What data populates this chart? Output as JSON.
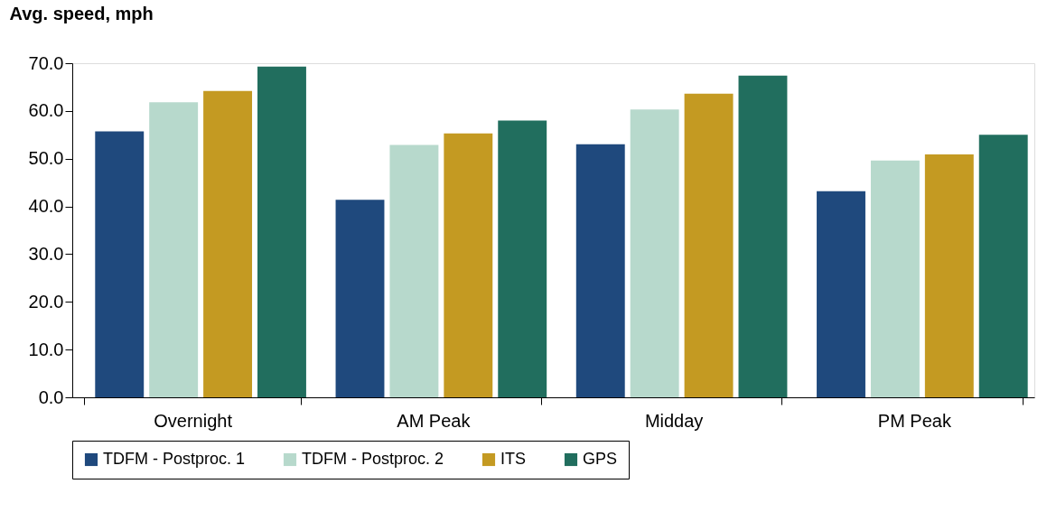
{
  "chart_data": {
    "type": "bar",
    "ylabel": "Avg. speed, mph",
    "categories": [
      "Overnight",
      "AM Peak",
      "Midday",
      "PM Peak"
    ],
    "series": [
      {
        "name": "TDFM - Postproc. 1",
        "color": "#1f497d",
        "values": [
          55.7,
          41.4,
          53.0,
          43.2
        ]
      },
      {
        "name": "TDFM - Postproc. 2",
        "color": "#b7d9cc",
        "values": [
          61.8,
          52.9,
          60.3,
          49.6
        ]
      },
      {
        "name": "ITS",
        "color": "#c49a22",
        "values": [
          64.2,
          55.3,
          63.6,
          50.9
        ]
      },
      {
        "name": "GPS",
        "color": "#216e5e",
        "values": [
          69.3,
          58.0,
          67.4,
          55.0
        ]
      }
    ],
    "ylim": [
      0,
      70
    ],
    "yticks": [
      {
        "value": 0,
        "label": "0.0"
      },
      {
        "value": 10,
        "label": "10.0"
      },
      {
        "value": 20,
        "label": "20.0"
      },
      {
        "value": 30,
        "label": "30.0"
      },
      {
        "value": 40,
        "label": "40.0"
      },
      {
        "value": 50,
        "label": "50.0"
      },
      {
        "value": 60,
        "label": "60.0"
      },
      {
        "value": 70,
        "label": "70.0"
      }
    ],
    "grid": false,
    "legend": "bottom"
  }
}
